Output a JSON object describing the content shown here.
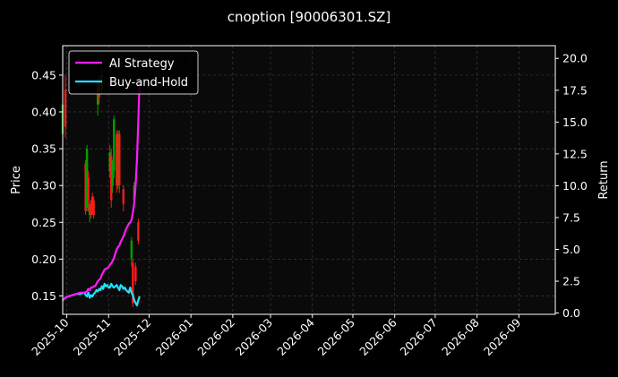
{
  "chart_data": {
    "type": "line",
    "title": "cnoption [90006301.SZ]",
    "ylabel_left": "Price",
    "ylabel_right": "Return",
    "ylim_left": [
      0.125,
      0.49
    ],
    "ylim_right": [
      -0.1,
      21.0
    ],
    "left_ticks": [
      "0.15",
      "0.20",
      "0.25",
      "0.30",
      "0.35",
      "0.40",
      "0.45"
    ],
    "right_ticks": [
      "0.0",
      "2.5",
      "5.0",
      "7.5",
      "10.0",
      "12.5",
      "15.0",
      "17.5",
      "20.0"
    ],
    "x_ticks": [
      "2025-10",
      "2025-11",
      "2025-12",
      "2026-01",
      "2026-02",
      "2026-03",
      "2026-04",
      "2026-05",
      "2026-06",
      "2026-07",
      "2026-08",
      "2026-09"
    ],
    "xlim": [
      "2025-09-28",
      "2026-09-28"
    ],
    "grid": true,
    "legend_position": "top-left",
    "colors": {
      "up": "#00a000",
      "down": "#ff1a1a",
      "ai": "#ff1aff",
      "bh": "#22e0ff"
    },
    "series": [
      {
        "name": "AI Strategy",
        "color": "#ff1aff",
        "axis": "right",
        "x": [
          "2025-09-28",
          "2025-09-30",
          "2025-10-02",
          "2025-10-05",
          "2025-10-08",
          "2025-10-11",
          "2025-10-14",
          "2025-10-16",
          "2025-10-17",
          "2025-10-18",
          "2025-10-19",
          "2025-10-20",
          "2025-10-21",
          "2025-10-22",
          "2025-10-23",
          "2025-10-24",
          "2025-10-25",
          "2025-10-26",
          "2025-10-27",
          "2025-10-28",
          "2025-10-29",
          "2025-10-30",
          "2025-10-31",
          "2025-11-01",
          "2025-11-02",
          "2025-11-03",
          "2025-11-04",
          "2025-11-05",
          "2025-11-06",
          "2025-11-07",
          "2025-11-08",
          "2025-11-09",
          "2025-11-10",
          "2025-11-11",
          "2025-11-12",
          "2025-11-13",
          "2025-11-14",
          "2025-11-15",
          "2025-11-16",
          "2025-11-17",
          "2025-11-18",
          "2025-11-19",
          "2025-11-20",
          "2025-11-21",
          "2025-11-22",
          "2025-11-23",
          "2025-11-24"
        ],
        "values": [
          1.0,
          1.2,
          1.3,
          1.4,
          1.5,
          1.6,
          1.6,
          1.7,
          1.9,
          1.8,
          2.0,
          2.0,
          2.1,
          2.1,
          2.3,
          2.5,
          2.6,
          2.7,
          3.0,
          3.2,
          3.4,
          3.5,
          3.5,
          3.6,
          3.8,
          3.9,
          4.1,
          4.3,
          4.7,
          5.0,
          5.2,
          5.3,
          5.6,
          5.8,
          6.0,
          6.3,
          6.6,
          6.8,
          7.0,
          7.1,
          7.3,
          7.9,
          8.6,
          10.0,
          12.0,
          15.0,
          18.5
        ]
      },
      {
        "name": "Buy-and-Hold",
        "color": "#22e0ff",
        "axis": "right",
        "x": [
          "2025-09-28",
          "2025-09-30",
          "2025-10-02",
          "2025-10-05",
          "2025-10-08",
          "2025-10-11",
          "2025-10-14",
          "2025-10-16",
          "2025-10-17",
          "2025-10-18",
          "2025-10-19",
          "2025-10-20",
          "2025-10-21",
          "2025-10-22",
          "2025-10-23",
          "2025-10-24",
          "2025-10-25",
          "2025-10-26",
          "2025-10-27",
          "2025-10-28",
          "2025-10-29",
          "2025-10-30",
          "2025-10-31",
          "2025-11-01",
          "2025-11-02",
          "2025-11-03",
          "2025-11-04",
          "2025-11-05",
          "2025-11-06",
          "2025-11-07",
          "2025-11-08",
          "2025-11-09",
          "2025-11-10",
          "2025-11-11",
          "2025-11-12",
          "2025-11-13",
          "2025-11-14",
          "2025-11-15",
          "2025-11-16",
          "2025-11-17",
          "2025-11-18",
          "2025-11-19",
          "2025-11-20",
          "2025-11-21",
          "2025-11-22",
          "2025-11-23",
          "2025-11-24"
        ],
        "values": [
          1.0,
          1.2,
          1.3,
          1.4,
          1.5,
          1.5,
          1.6,
          1.3,
          1.6,
          1.2,
          1.4,
          1.3,
          1.5,
          1.6,
          1.8,
          1.7,
          1.9,
          1.8,
          2.1,
          1.9,
          2.3,
          2.1,
          2.2,
          2.0,
          2.0,
          2.3,
          2.1,
          2.0,
          2.1,
          2.2,
          2.0,
          1.8,
          2.2,
          2.1,
          1.9,
          2.0,
          1.8,
          1.7,
          1.6,
          2.0,
          1.6,
          1.4,
          1.0,
          0.8,
          0.6,
          1.0,
          1.3
        ]
      }
    ],
    "candles": [
      {
        "x": "2025-09-28",
        "open": 0.37,
        "close": 0.41,
        "high": 0.42,
        "low": 0.36
      },
      {
        "x": "2025-09-30",
        "open": 0.43,
        "close": 0.38,
        "high": 0.45,
        "low": 0.365
      },
      {
        "x": "2025-10-15",
        "open": 0.33,
        "close": 0.265,
        "high": 0.335,
        "low": 0.26
      },
      {
        "x": "2025-10-16",
        "open": 0.27,
        "close": 0.35,
        "high": 0.355,
        "low": 0.265
      },
      {
        "x": "2025-10-17",
        "open": 0.31,
        "close": 0.28,
        "high": 0.32,
        "low": 0.265
      },
      {
        "x": "2025-10-18",
        "open": 0.26,
        "close": 0.275,
        "high": 0.28,
        "low": 0.25
      },
      {
        "x": "2025-10-19",
        "open": 0.275,
        "close": 0.26,
        "high": 0.28,
        "low": 0.255
      },
      {
        "x": "2025-10-20",
        "open": 0.285,
        "close": 0.265,
        "high": 0.29,
        "low": 0.26
      },
      {
        "x": "2025-10-21",
        "open": 0.28,
        "close": 0.26,
        "high": 0.285,
        "low": 0.255
      },
      {
        "x": "2025-10-24",
        "open": 0.41,
        "close": 0.44,
        "high": 0.445,
        "low": 0.395
      },
      {
        "x": "2025-10-25",
        "open": 0.445,
        "close": 0.42,
        "high": 0.45,
        "low": 0.41
      },
      {
        "x": "2025-10-27",
        "open": 0.43,
        "close": 0.45,
        "high": 0.46,
        "low": 0.425
      },
      {
        "x": "2025-11-02",
        "open": 0.32,
        "close": 0.345,
        "high": 0.355,
        "low": 0.31
      },
      {
        "x": "2025-11-03",
        "open": 0.34,
        "close": 0.28,
        "high": 0.35,
        "low": 0.27
      },
      {
        "x": "2025-11-04",
        "open": 0.3,
        "close": 0.33,
        "high": 0.335,
        "low": 0.29
      },
      {
        "x": "2025-11-05",
        "open": 0.32,
        "close": 0.39,
        "high": 0.395,
        "low": 0.31
      },
      {
        "x": "2025-11-07",
        "open": 0.37,
        "close": 0.3,
        "high": 0.375,
        "low": 0.29
      },
      {
        "x": "2025-11-08",
        "open": 0.3,
        "close": 0.37,
        "high": 0.375,
        "low": 0.295
      },
      {
        "x": "2025-11-09",
        "open": 0.37,
        "close": 0.3,
        "high": 0.375,
        "low": 0.29
      },
      {
        "x": "2025-11-12",
        "open": 0.295,
        "close": 0.275,
        "high": 0.3,
        "low": 0.265
      },
      {
        "x": "2025-11-18",
        "open": 0.2,
        "close": 0.225,
        "high": 0.23,
        "low": 0.19
      },
      {
        "x": "2025-11-19",
        "open": 0.195,
        "close": 0.14,
        "high": 0.2,
        "low": 0.135
      },
      {
        "x": "2025-11-20",
        "open": 0.28,
        "close": 0.3,
        "high": 0.305,
        "low": 0.27
      },
      {
        "x": "2025-11-21",
        "open": 0.19,
        "close": 0.17,
        "high": 0.195,
        "low": 0.165
      },
      {
        "x": "2025-11-23",
        "open": 0.25,
        "close": 0.225,
        "high": 0.255,
        "low": 0.22
      }
    ]
  }
}
